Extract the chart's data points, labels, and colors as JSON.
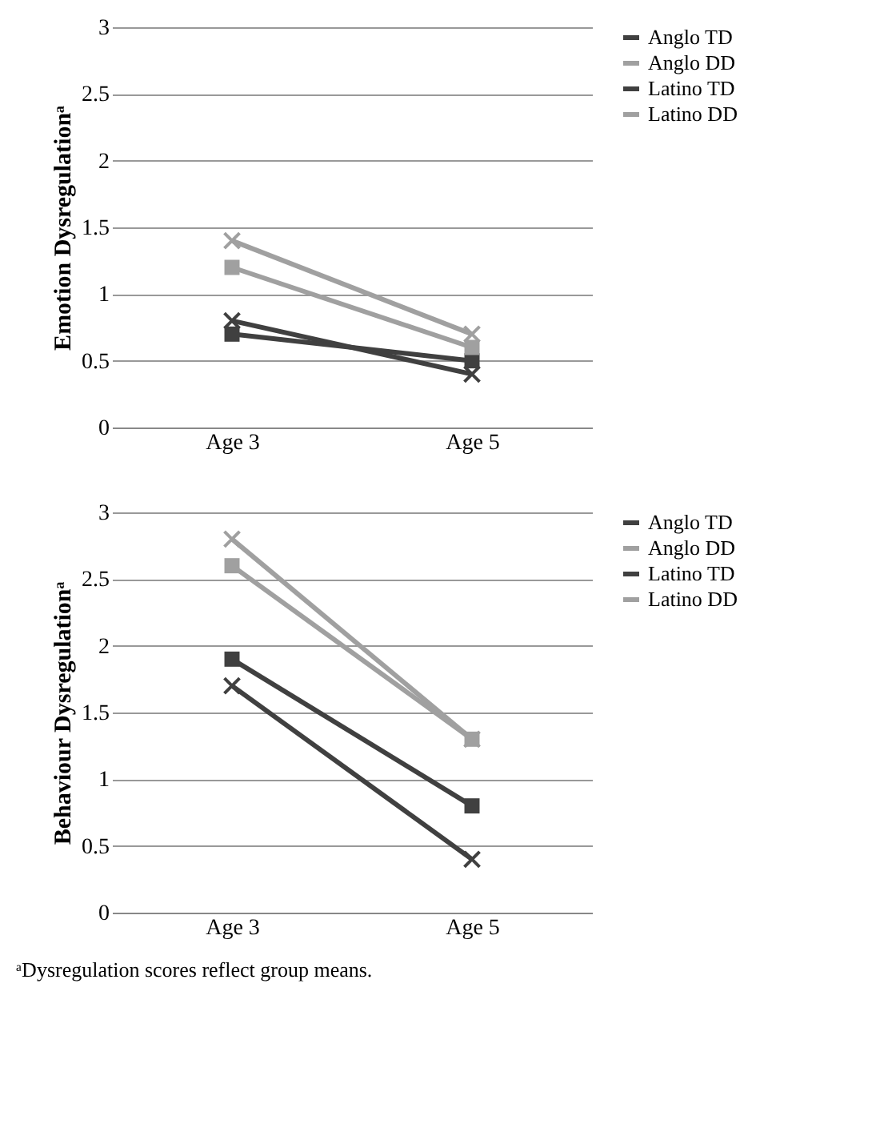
{
  "chart_data": [
    {
      "type": "line",
      "ylabel": "Emotion Dysregulationᵃ",
      "categories": [
        "Age 3",
        "Age 5"
      ],
      "ylim": [
        0,
        3
      ],
      "yticks": [
        0,
        0.5,
        1,
        1.5,
        2,
        2.5,
        3
      ],
      "grid": "y",
      "legend": "right",
      "series": [
        {
          "name": "Anglo TD",
          "color": "#404040",
          "marker": "cross",
          "values": [
            0.8,
            0.4
          ]
        },
        {
          "name": "Anglo DD",
          "color": "#a0a0a0",
          "marker": "cross",
          "values": [
            1.4,
            0.7
          ]
        },
        {
          "name": "Latino TD",
          "color": "#404040",
          "marker": "square",
          "values": [
            0.7,
            0.5
          ]
        },
        {
          "name": "Latino DD",
          "color": "#a0a0a0",
          "marker": "square",
          "values": [
            1.2,
            0.6
          ]
        }
      ]
    },
    {
      "type": "line",
      "ylabel": "Behaviour Dysregulationᵃ",
      "categories": [
        "Age 3",
        "Age 5"
      ],
      "ylim": [
        0,
        3
      ],
      "yticks": [
        0,
        0.5,
        1,
        1.5,
        2,
        2.5,
        3
      ],
      "grid": "y",
      "legend": "right",
      "annotations": [
        "ᵃDysregulation scores reflect group means."
      ],
      "series": [
        {
          "name": "Anglo TD",
          "color": "#404040",
          "marker": "cross",
          "values": [
            1.7,
            0.4
          ]
        },
        {
          "name": "Anglo DD",
          "color": "#a0a0a0",
          "marker": "cross",
          "values": [
            2.8,
            1.3
          ]
        },
        {
          "name": "Latino TD",
          "color": "#404040",
          "marker": "square",
          "values": [
            1.9,
            0.8
          ]
        },
        {
          "name": "Latino DD",
          "color": "#a0a0a0",
          "marker": "square",
          "values": [
            2.6,
            1.3
          ]
        }
      ]
    }
  ]
}
